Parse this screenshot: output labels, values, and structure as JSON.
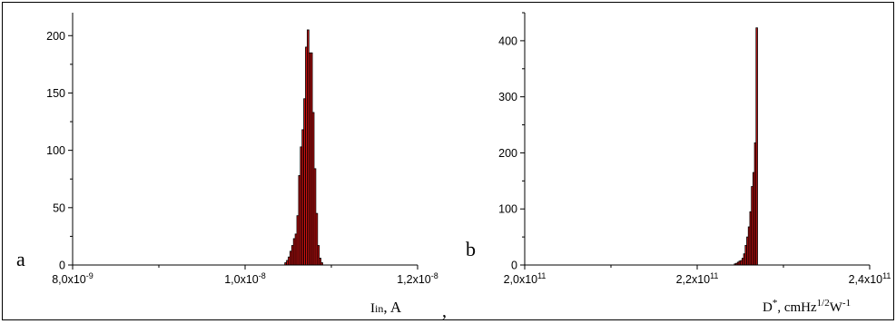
{
  "page": {
    "separator": ","
  },
  "chart_data": [
    {
      "type": "bar",
      "panel_label": "a",
      "xlabel": "I",
      "xlabel_sub": "in",
      "xlabel_unit": ",  A",
      "ylabel": "",
      "xlim": [
        8e-09,
        1.2e-08
      ],
      "ylim": [
        0,
        220
      ],
      "x_ticks": [
        {
          "value": 8e-09,
          "mantissa": "8,0x10",
          "exponent": "-9"
        },
        {
          "value": 1e-08,
          "mantissa": "1,0x10",
          "exponent": "-8"
        },
        {
          "value": 1.2e-08,
          "mantissa": "1,2x10",
          "exponent": "-8"
        }
      ],
      "y_ticks": [
        0,
        50,
        100,
        150,
        200
      ],
      "bin_width": 2e-11,
      "bins_x": [
        1.046e-08,
        1.048e-08,
        1.05e-08,
        1.052e-08,
        1.054e-08,
        1.056e-08,
        1.058e-08,
        1.06e-08,
        1.062e-08,
        1.064e-08,
        1.066e-08,
        1.068e-08,
        1.07e-08,
        1.072e-08,
        1.074e-08,
        1.076e-08,
        1.078e-08,
        1.08e-08,
        1.082e-08,
        1.084e-08,
        1.086e-08,
        1.088e-08,
        1.09e-08,
        1.092e-08
      ],
      "values": [
        2,
        4,
        7,
        12,
        17,
        23,
        27,
        43,
        78,
        103,
        118,
        145,
        190,
        205,
        185,
        185,
        133,
        84,
        45,
        17,
        6,
        2,
        0,
        0
      ],
      "bar_color": "#cc1111",
      "grid": false
    },
    {
      "type": "bar",
      "panel_label": "b",
      "xlabel": "D",
      "xlabel_sup": "*",
      "xlabel_unit": ", cmHz",
      "xlabel_unit_sup": "1/2",
      "xlabel_unit2": "W",
      "xlabel_unit2_sup": "-1",
      "ylabel": "",
      "xlim": [
        200000000000.0,
        240000000000.0
      ],
      "ylim": [
        0,
        450
      ],
      "x_ticks": [
        {
          "value": 200000000000.0,
          "mantissa": "2,0x10",
          "exponent": "11"
        },
        {
          "value": 220000000000.0,
          "mantissa": "2,2x10",
          "exponent": "11"
        },
        {
          "value": 240000000000.0,
          "mantissa": "2,4x10",
          "exponent": "11"
        }
      ],
      "y_ticks": [
        0,
        100,
        200,
        300,
        400
      ],
      "bin_width": 180000000.0,
      "bins_x": [
        224300000000.0,
        224480000000.0,
        224660000000.0,
        224840000000.0,
        225020000000.0,
        225200000000.0,
        225380000000.0,
        225560000000.0,
        225740000000.0,
        225920000000.0,
        226100000000.0,
        226280000000.0,
        226460000000.0,
        226640000000.0,
        226820000000.0
      ],
      "values": [
        2,
        3,
        5,
        7,
        8,
        12,
        20,
        35,
        50,
        68,
        95,
        140,
        165,
        218,
        423
      ],
      "bar_color": "#cc1111",
      "grid": false
    }
  ]
}
